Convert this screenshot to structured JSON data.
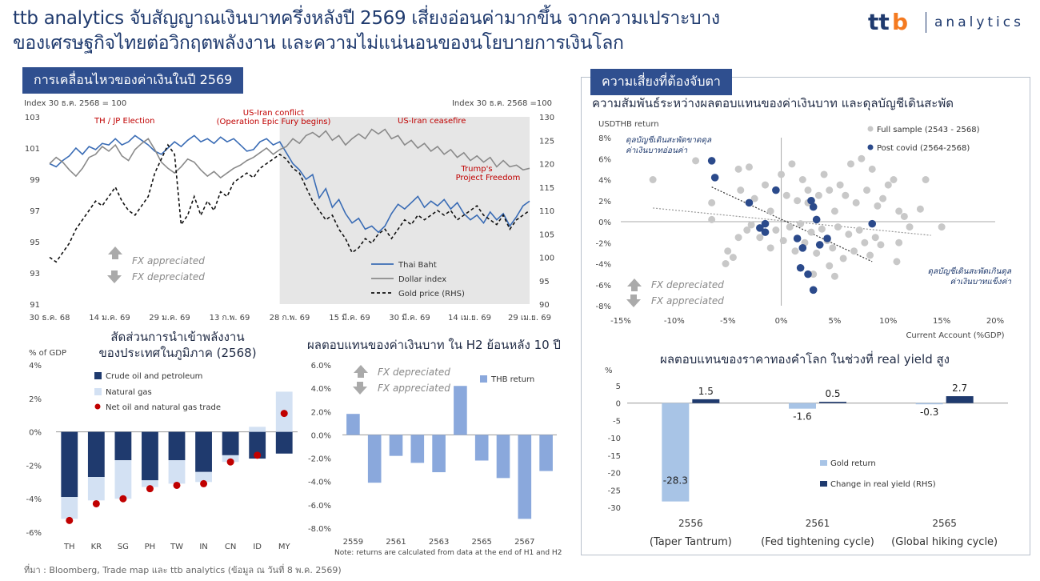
{
  "header": {
    "line1": "ttb analytics จับสัญญาณเงินบาทครึ่งหลังปี 2569 เสี่ยงอ่อนค่ามากขึ้น จากความเปราะบาง",
    "line2": "ของเศรษฐกิจไทยต่อวิกฤตพลังงาน และความไม่แน่นอนของนโยบายการเงินโลก",
    "logo_text": "analytics",
    "logo_brand": "ttb"
  },
  "tags": {
    "left": "การเคลื่อนไหวของค่าเงินในปี 2569",
    "right": "ความเสี่ยงที่ต้องจับตา"
  },
  "colors": {
    "navy": "#1f3a6e",
    "blue": "#3a6cb5",
    "gray": "#8a8a8a",
    "light_blue": "#a8c4e6",
    "bar_blue": "#8aa8dc",
    "red": "#c00000",
    "shade": "#e6e6e6"
  },
  "source": "ที่มา : Bloomberg, Trade map และ ttb analytics (ข้อมูล ณ วันที่ 8 พ.ค. 2569)",
  "chart_data": [
    {
      "id": "fx-movement",
      "type": "line",
      "left_axis_label": "Index 30 ธ.ค. 2568 = 100",
      "right_axis_label": "Index 30 ธ.ค. 2568 =100",
      "y_left": {
        "min": 91,
        "max": 103,
        "ticks": [
          "103",
          "101",
          "99",
          "97",
          "95",
          "93",
          "91"
        ]
      },
      "y_right": {
        "min": 90,
        "max": 130,
        "ticks": [
          "130",
          "125",
          "120",
          "115",
          "110",
          "105",
          "100",
          "95",
          "90"
        ]
      },
      "x_ticks": [
        "30 ธ.ค. 68",
        "14 ม.ค. 69",
        "29 ม.ค. 69",
        "13 ก.พ. 69",
        "28 ก.พ. 69",
        "15 มี.ค. 69",
        "30 มี.ค. 69",
        "14 เม.ย. 69",
        "29 เม.ย. 69"
      ],
      "annotations": {
        "election": "TH / JP Election",
        "conflict_1": "US-Iran conflict",
        "conflict_2": "(Operation Epic Fury begins)",
        "ceasefire": "US-Iran ceasefire",
        "trump_1": "Trump's",
        "trump_2": "Project Freedom"
      },
      "fx_up": "FX appreciated",
      "fx_down": "FX depreciated",
      "series": [
        {
          "name": "Thai Baht",
          "axis": "left",
          "values": [
            100,
            99.8,
            100.2,
            100.5,
            101,
            100.6,
            101.1,
            100.9,
            101.3,
            101.2,
            101.6,
            101.2,
            101.4,
            101.8,
            101.5,
            101.2,
            100.8,
            100.6,
            101,
            101.4,
            101.1,
            101.5,
            101.8,
            101.4,
            101.6,
            101.3,
            101.7,
            101.4,
            101.6,
            101.2,
            100.8,
            100.9,
            101.4,
            101.6,
            101.2,
            101.4,
            100.7,
            100,
            99.6,
            99,
            99.3,
            97.8,
            98.4,
            97.2,
            97.7,
            96.8,
            96.2,
            96.5,
            95.8,
            96,
            95.6,
            96,
            96.8,
            97.4,
            97.1,
            97.5,
            97.9,
            97.2,
            97.6,
            97.3,
            97.7,
            97.1,
            97.5,
            96.8,
            96.4,
            96.7,
            96.2,
            96.9,
            96.4,
            96.8,
            96,
            96.6,
            97.3,
            97.6
          ]
        },
        {
          "name": "Dollar index",
          "axis": "left",
          "values": [
            100,
            100.4,
            100.1,
            99.6,
            99.2,
            99.7,
            100.4,
            100.6,
            101.1,
            100.8,
            101.2,
            100.5,
            100.2,
            100.9,
            101.3,
            101.6,
            100.9,
            100.1,
            99.7,
            99.4,
            99.8,
            100.3,
            100.1,
            99.6,
            99.2,
            99.5,
            99.1,
            99.4,
            99.7,
            99.9,
            100.2,
            100.4,
            100.7,
            101,
            100.6,
            100.9,
            101.1,
            101.6,
            101.3,
            101.8,
            102,
            101.7,
            102.1,
            101.5,
            101.8,
            101.2,
            101.6,
            101.9,
            101.6,
            102.2,
            101.9,
            102.2,
            101.6,
            101.8,
            101.2,
            101.5,
            101,
            101.3,
            100.8,
            101.1,
            100.6,
            100.9,
            100.4,
            100.7,
            100.2,
            100.5,
            100.1,
            100.4,
            99.8,
            100.2,
            99.8,
            99.9,
            99.6,
            99.7
          ]
        },
        {
          "name": "Gold price (RHS)",
          "axis": "right",
          "values": [
            100,
            99,
            101,
            103,
            106,
            108,
            110,
            112,
            111,
            113,
            115,
            112,
            110,
            109,
            111,
            113,
            118,
            121,
            124,
            122,
            107,
            109,
            113,
            109,
            112,
            110,
            114,
            113,
            116,
            117,
            118,
            117,
            119,
            120,
            121,
            122,
            121,
            119,
            118,
            115,
            112,
            110,
            108,
            109,
            106,
            104,
            101,
            102,
            104,
            103,
            105,
            106,
            104,
            106,
            108,
            107,
            109,
            108,
            109,
            110,
            109,
            110,
            108,
            109,
            110,
            111,
            109,
            108,
            107,
            109,
            106,
            108,
            109,
            110
          ]
        }
      ]
    },
    {
      "id": "energy-import",
      "type": "bar",
      "title_1": "สัดส่วนการนำเข้าพลังงาน",
      "title_2": "ของประเทศในภูมิภาค (2568)",
      "ylabel": "% of GDP",
      "y_ticks": [
        "4%",
        "2%",
        "0%",
        "-2%",
        "-4%",
        "-6%"
      ],
      "ylim": [
        -6,
        4
      ],
      "categories": [
        "TH",
        "KR",
        "SG",
        "PH",
        "TW",
        "IN",
        "CN",
        "ID",
        "MY"
      ],
      "series": [
        {
          "name": "Crude oil and petroleum",
          "values": [
            -3.9,
            -2.7,
            -1.7,
            -2.9,
            -1.7,
            -2.4,
            -1.4,
            -1.6,
            -1.3
          ]
        },
        {
          "name": "Natural gas",
          "values": [
            -1.3,
            -1.4,
            -2.3,
            -0.4,
            -1.4,
            -0.6,
            -0.4,
            0.3,
            2.4
          ]
        },
        {
          "name": "Net oil and natural gas trade",
          "values": [
            -5.3,
            -4.3,
            -4.0,
            -3.4,
            -3.2,
            -3.1,
            -1.8,
            -1.4,
            1.1
          ]
        }
      ]
    },
    {
      "id": "thb-return",
      "type": "bar",
      "title": "ผลตอบแทนของค่าเงินบาท ใน H2 ย้อนหลัง 10 ปี",
      "y_ticks": [
        "6.0%",
        "4.0%",
        "2.0%",
        "0.0%",
        "-2.0%",
        "-4.0%",
        "-6.0%",
        "-8.0%"
      ],
      "ylim": [
        -8,
        6
      ],
      "x_ticks": [
        "2559",
        "2561",
        "2563",
        "2565",
        "2567"
      ],
      "series": [
        {
          "name": "THB return",
          "values": [
            1.8,
            -4.1,
            -1.8,
            -2.4,
            -3.2,
            4.2,
            -2.2,
            -3.7,
            -7.2,
            -3.1
          ]
        }
      ],
      "fx_up": "FX depreciated",
      "fx_down": "FX appreciated",
      "note": "Note: returns are calculated from data at the end of H1 and H2"
    },
    {
      "id": "ca-scatter",
      "type": "scatter",
      "title": "ความสัมพันธ์ระหว่างผลตอบแทนของค่าเงินบาท และดุลบัญชีเดินสะพัด",
      "ylabel": "USDTHB return",
      "xlabel": "Current Account (%GDP)",
      "xlim": [
        -15,
        20
      ],
      "ylim": [
        -8,
        8
      ],
      "x_ticks": [
        "-15%",
        "-10%",
        "-5%",
        "0%",
        "5%",
        "10%",
        "15%",
        "20%"
      ],
      "y_ticks": [
        "8%",
        "6%",
        "4%",
        "2%",
        "0%",
        "-2%",
        "-4%",
        "-6%",
        "-8%"
      ],
      "annotation_deficit_1": "ดุลบัญชีเดินสะพัดขาดดุล",
      "annotation_deficit_2": "ค่าเงินบาทอ่อนค่า",
      "annotation_surplus_1": "ดุลบัญชีเดินสะพัดเกินดุล",
      "annotation_surplus_2": "ค่าเงินบาทแข็งค่า",
      "fx_up": "FX depreciated",
      "fx_down": "FX appreciated",
      "series": [
        {
          "name": "Full sample (2543 - 2568)",
          "points": [
            [
              -12,
              4
            ],
            [
              -8,
              5.8
            ],
            [
              -6.5,
              1.8
            ],
            [
              -4,
              5
            ],
            [
              -3.8,
              3
            ],
            [
              -3,
              5.2
            ],
            [
              -2.5,
              2.2
            ],
            [
              -1.5,
              3.5
            ],
            [
              -1,
              1
            ],
            [
              0,
              4.5
            ],
            [
              0.5,
              2.5
            ],
            [
              1,
              5.5
            ],
            [
              1.5,
              2
            ],
            [
              2,
              4
            ],
            [
              2.5,
              3
            ],
            [
              3,
              1.5
            ],
            [
              3.5,
              2.5
            ],
            [
              4,
              4.5
            ],
            [
              4.5,
              3
            ],
            [
              5,
              1
            ],
            [
              5.5,
              3.5
            ],
            [
              6,
              2.5
            ],
            [
              6.5,
              5.5
            ],
            [
              7,
              1.8
            ],
            [
              7.5,
              6
            ],
            [
              8,
              3
            ],
            [
              8.5,
              5
            ],
            [
              9,
              1.5
            ],
            [
              9.5,
              2.2
            ],
            [
              10,
              3.5
            ],
            [
              10.5,
              4
            ],
            [
              11,
              1
            ],
            [
              11.5,
              0.5
            ],
            [
              12,
              -0.5
            ],
            [
              13,
              1.2
            ],
            [
              13.5,
              4
            ],
            [
              15,
              -0.5
            ],
            [
              11,
              -2
            ],
            [
              -2,
              -1.5
            ],
            [
              -1,
              -2.5
            ],
            [
              -0.5,
              -0.8
            ],
            [
              0.2,
              -1.8
            ],
            [
              0.8,
              -0.5
            ],
            [
              1.3,
              -2.8
            ],
            [
              1.8,
              -0.2
            ],
            [
              2.2,
              -2
            ],
            [
              2.8,
              -1
            ],
            [
              3.3,
              -3
            ],
            [
              3.8,
              -0.7
            ],
            [
              4.3,
              -1.8
            ],
            [
              4.8,
              -2.5
            ],
            [
              5.3,
              -0.5
            ],
            [
              5.8,
              -3.5
            ],
            [
              6.3,
              -1.2
            ],
            [
              6.8,
              -2.8
            ],
            [
              7.3,
              -0.8
            ],
            [
              7.8,
              -2
            ],
            [
              8.3,
              -3.2
            ],
            [
              8.8,
              -1.5
            ],
            [
              9.3,
              -2.2
            ],
            [
              10.8,
              -3.8
            ],
            [
              4.5,
              -4.2
            ],
            [
              5,
              -5.2
            ],
            [
              3,
              -5
            ],
            [
              -5,
              -2.8
            ],
            [
              -4.5,
              -3.4
            ],
            [
              -5.2,
              -4
            ],
            [
              -4,
              -1.5
            ],
            [
              -3.2,
              -0.8
            ],
            [
              -6.5,
              0.2
            ],
            [
              -2.8,
              -0.3
            ],
            [
              2.5,
              1.8
            ]
          ]
        },
        {
          "name": "Post covid (2564-2568)",
          "points": [
            [
              -6.5,
              5.8
            ],
            [
              -6.2,
              4.2
            ],
            [
              -3,
              1.8
            ],
            [
              -2,
              -0.6
            ],
            [
              -1.5,
              -1
            ],
            [
              -0.5,
              3
            ],
            [
              -1.5,
              -0.2
            ],
            [
              1.5,
              -1.6
            ],
            [
              2,
              -2.5
            ],
            [
              2.5,
              -5
            ],
            [
              1.8,
              -4.4
            ],
            [
              2.8,
              2
            ],
            [
              3,
              1.4
            ],
            [
              3,
              -6.5
            ],
            [
              3.3,
              0.2
            ],
            [
              3.6,
              -2.2
            ],
            [
              4.3,
              -1.6
            ],
            [
              8.5,
              -0.2
            ]
          ]
        }
      ]
    },
    {
      "id": "gold-real-yield",
      "type": "bar",
      "title": "ผลตอบแทนของราคาทองคำโลก ในช่วงที่ real yield สูง",
      "ylabel": "%",
      "y_ticks": [
        "5",
        "0",
        "-5",
        "-10",
        "-15",
        "-20",
        "-25",
        "-30"
      ],
      "ylim": [
        -30,
        5
      ],
      "categories_year": [
        "2556",
        "2561",
        "2565"
      ],
      "categories_label": [
        "(Taper Tantrum)",
        "(Fed tightening cycle)",
        "(Global hiking cycle)"
      ],
      "series": [
        {
          "name": "Gold return",
          "values": [
            -28.3,
            -1.6,
            -0.3
          ],
          "labels": [
            "-28.3",
            "-1.6",
            "-0.3"
          ]
        },
        {
          "name": "Change in real yield (RHS)",
          "values": [
            1.5,
            0.5,
            2.7
          ],
          "labels": [
            "1.5",
            "0.5",
            "2.7"
          ]
        }
      ]
    }
  ]
}
